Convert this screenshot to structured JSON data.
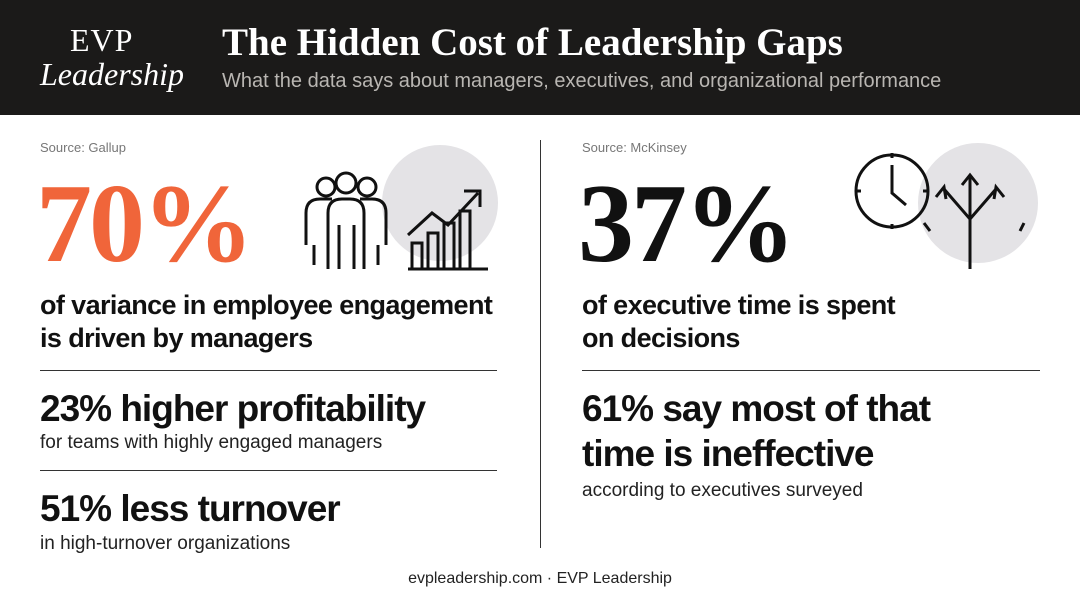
{
  "header": {
    "logo": {
      "line1": "EVP",
      "line2": "Leadership"
    },
    "title": "The Hidden Cost of Leadership Gaps",
    "subtitle": "What the data says about managers, executives, and organizational performance"
  },
  "left": {
    "source": "Source: Gallup",
    "stat": "70%",
    "statement": [
      "of variance in employee engagement",
      "is driven by managers"
    ],
    "facts": [
      {
        "headline": [
          "23% higher profitability"
        ],
        "detail": "for teams with highly engaged managers"
      },
      {
        "headline": [
          "51% less turnover"
        ],
        "detail": "in high-turnover organizations"
      }
    ]
  },
  "right": {
    "source": "Source: McKinsey",
    "stat": "37%",
    "statement": [
      "of executive time is spent",
      "on decisions"
    ],
    "facts": [
      {
        "headline": [
          "61% say most of that",
          "time is ineffective"
        ],
        "detail": "according to executives surveyed"
      }
    ]
  },
  "footer": "evpleadership.com · EVP Leadership"
}
